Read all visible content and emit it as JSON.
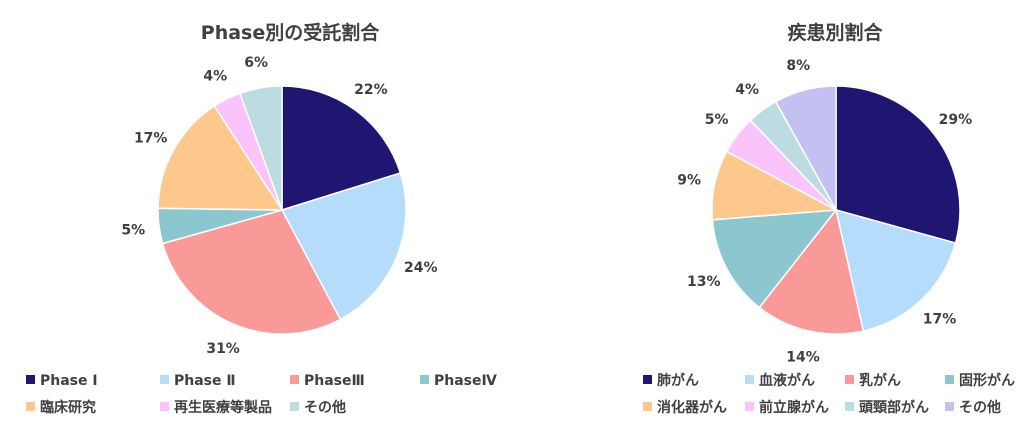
{
  "chart_data": [
    {
      "type": "pie",
      "title": "Phase別の受託割合",
      "labels": [
        "Phase Ⅰ",
        "Phase Ⅱ",
        "PhaseⅢ",
        "PhaseⅣ",
        "臨床研究",
        "再生医療等製品",
        "その他"
      ],
      "values": [
        22,
        24,
        31,
        5,
        17,
        4,
        6
      ],
      "value_labels": [
        "22%",
        "24%",
        "31%",
        "5%",
        "17%",
        "4%",
        "6%"
      ],
      "colors": [
        "#1f1672",
        "#b6dcfb",
        "#f99a99",
        "#8cc6cf",
        "#fec78c",
        "#fbc3fb",
        "#bcdce1"
      ],
      "legend": "bottom"
    },
    {
      "type": "pie",
      "title": "疾患別割合",
      "labels": [
        "肺がん",
        "血液がん",
        "乳がん",
        "固形がん",
        "消化器がん",
        "前立腺がん",
        "頭頸部がん",
        "その他"
      ],
      "values": [
        29,
        17,
        14,
        13,
        9,
        5,
        4,
        8
      ],
      "value_labels": [
        "29%",
        "17%",
        "14%",
        "13%",
        "9%",
        "5%",
        "4%",
        "8%"
      ],
      "colors": [
        "#1f1672",
        "#b6dcfb",
        "#f99a99",
        "#8cc6cf",
        "#fec78c",
        "#fbc3fb",
        "#bcdce1",
        "#c4c0f1"
      ],
      "legend": "bottom"
    }
  ]
}
